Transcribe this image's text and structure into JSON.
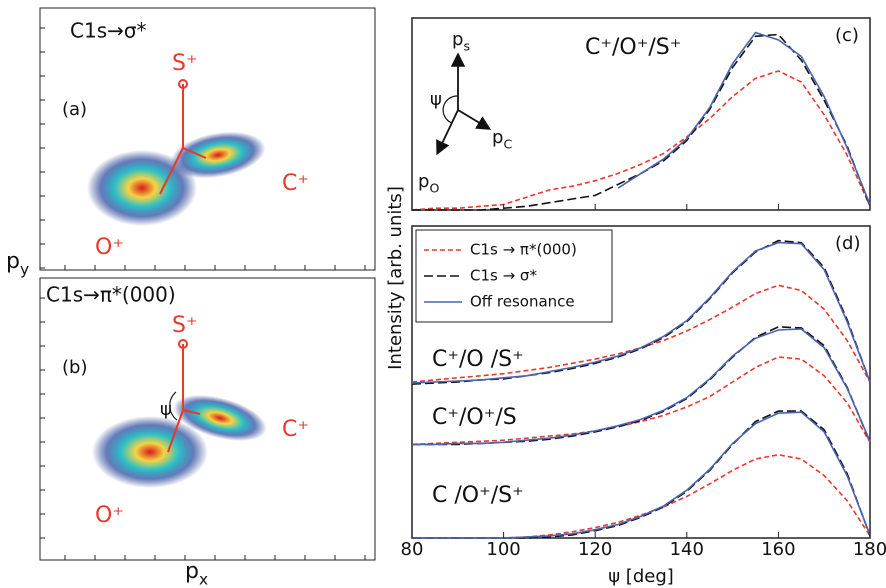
{
  "figure": {
    "x_label": {
      "base": "p",
      "sub": "x"
    },
    "y_label": {
      "base": "p",
      "sub": "y"
    }
  },
  "chart_data": [
    {
      "type": "image",
      "title": "C1s→σ*",
      "panel": "(a)",
      "annotations": [
        "S⁺",
        "C⁺",
        "O⁺"
      ]
    },
    {
      "type": "image",
      "title": "C1s→π*(000)",
      "panel": "(b)",
      "annotations": [
        "S⁺",
        "C⁺",
        "O⁺",
        "ψ"
      ]
    },
    {
      "type": "line",
      "panel": "(c)",
      "label": "C⁺/O⁺/S⁺",
      "inset": {
        "ps": {
          "base": "p",
          "sub": "s"
        },
        "pc": {
          "base": "p",
          "sub": "C"
        },
        "po": {
          "base": "p",
          "sub": "O"
        },
        "angle": "ψ"
      },
      "x": [
        80,
        85,
        90,
        95,
        100,
        105,
        110,
        115,
        120,
        125,
        130,
        135,
        140,
        145,
        150,
        155,
        160,
        165,
        170,
        175,
        180
      ],
      "xlim": [
        80,
        180
      ],
      "ylim": [
        0,
        1.05
      ],
      "series": [
        {
          "color": "#e8392b",
          "dash": "5,3",
          "values": [
            0,
            0.01,
            0.01,
            0.02,
            0.03,
            0.07,
            0.11,
            0.13,
            0.16,
            0.2,
            0.25,
            0.31,
            0.4,
            0.5,
            0.62,
            0.72,
            0.76,
            0.7,
            0.52,
            0.3,
            0.02
          ]
        },
        {
          "color": "#111111",
          "dash": "9,4",
          "values": [
            0,
            0,
            0,
            0,
            0.01,
            0.02,
            0.04,
            0.06,
            0.08,
            0.14,
            0.2,
            0.27,
            0.38,
            0.55,
            0.78,
            0.95,
            0.96,
            0.82,
            0.6,
            0.35,
            0.02
          ]
        },
        {
          "color": "#4a63b0",
          "dash": "",
          "values": [
            null,
            null,
            null,
            null,
            null,
            null,
            null,
            null,
            null,
            0.12,
            0.2,
            0.28,
            0.39,
            0.56,
            0.8,
            0.97,
            0.93,
            0.84,
            0.62,
            0.34,
            0.03
          ]
        }
      ]
    },
    {
      "type": "line",
      "panel": "(d)",
      "xlabel": "ψ [deg]",
      "ylabel": "Intensity [arb. units]",
      "x": [
        80,
        85,
        90,
        95,
        100,
        105,
        110,
        115,
        120,
        125,
        130,
        135,
        140,
        145,
        150,
        155,
        160,
        165,
        170,
        175,
        180
      ],
      "xlim": [
        80,
        180
      ],
      "ylim": [
        0,
        3
      ],
      "xticks": [
        80,
        100,
        120,
        140,
        160,
        180
      ],
      "legend": [
        {
          "name": "C1s → π*(000)",
          "color": "#e8392b",
          "dash": "5,3"
        },
        {
          "name": "C1s →  σ*",
          "color": "#111111",
          "dash": "9,4"
        },
        {
          "name": "Off resonance",
          "color": "#4a63b0",
          "dash": ""
        }
      ],
      "groups": [
        {
          "label": "C⁺/O /S⁺",
          "series": [
            [
              1.5,
              1.52,
              1.54,
              1.56,
              1.58,
              1.61,
              1.64,
              1.68,
              1.72,
              1.77,
              1.83,
              1.9,
              1.99,
              2.1,
              2.22,
              2.35,
              2.43,
              2.38,
              2.2,
              1.9,
              1.5
            ],
            [
              1.48,
              1.49,
              1.5,
              1.52,
              1.53,
              1.56,
              1.59,
              1.63,
              1.68,
              1.74,
              1.82,
              1.93,
              2.08,
              2.3,
              2.55,
              2.75,
              2.86,
              2.84,
              2.6,
              2.1,
              1.5
            ],
            [
              1.49,
              1.5,
              1.51,
              1.52,
              1.54,
              1.56,
              1.6,
              1.64,
              1.69,
              1.75,
              1.83,
              1.94,
              2.09,
              2.31,
              2.56,
              2.76,
              2.84,
              2.83,
              2.58,
              2.08,
              1.5
            ]
          ]
        },
        {
          "label": "C⁺/O⁺/S",
          "series": [
            [
              0.9,
              0.91,
              0.92,
              0.93,
              0.94,
              0.96,
              0.98,
              1.0,
              1.03,
              1.07,
              1.12,
              1.18,
              1.26,
              1.36,
              1.5,
              1.64,
              1.74,
              1.72,
              1.56,
              1.3,
              0.92
            ],
            [
              0.9,
              0.9,
              0.9,
              0.91,
              0.92,
              0.93,
              0.95,
              0.98,
              1.02,
              1.07,
              1.13,
              1.22,
              1.34,
              1.52,
              1.74,
              1.93,
              2.03,
              2.02,
              1.85,
              1.45,
              0.92
            ],
            [
              0.9,
              0.9,
              0.91,
              0.91,
              0.92,
              0.94,
              0.96,
              0.99,
              1.03,
              1.08,
              1.14,
              1.23,
              1.35,
              1.53,
              1.75,
              1.92,
              2.0,
              2.01,
              1.83,
              1.44,
              0.93
            ]
          ]
        },
        {
          "label": "C /O⁺/S⁺",
          "series": [
            [
              0,
              0,
              0,
              0,
              0,
              0.01,
              0.03,
              0.06,
              0.1,
              0.15,
              0.22,
              0.3,
              0.4,
              0.52,
              0.65,
              0.76,
              0.8,
              0.76,
              0.6,
              0.36,
              0.02
            ],
            [
              0,
              0,
              0,
              0,
              0,
              0,
              0.01,
              0.03,
              0.07,
              0.12,
              0.2,
              0.3,
              0.45,
              0.65,
              0.9,
              1.12,
              1.22,
              1.22,
              1.04,
              0.62,
              0.02
            ],
            [
              0,
              0,
              0,
              0,
              0,
              0.01,
              0.02,
              0.04,
              0.08,
              0.13,
              0.21,
              0.31,
              0.46,
              0.66,
              0.91,
              1.1,
              1.2,
              1.21,
              1.02,
              0.6,
              0.03
            ]
          ]
        }
      ]
    }
  ]
}
